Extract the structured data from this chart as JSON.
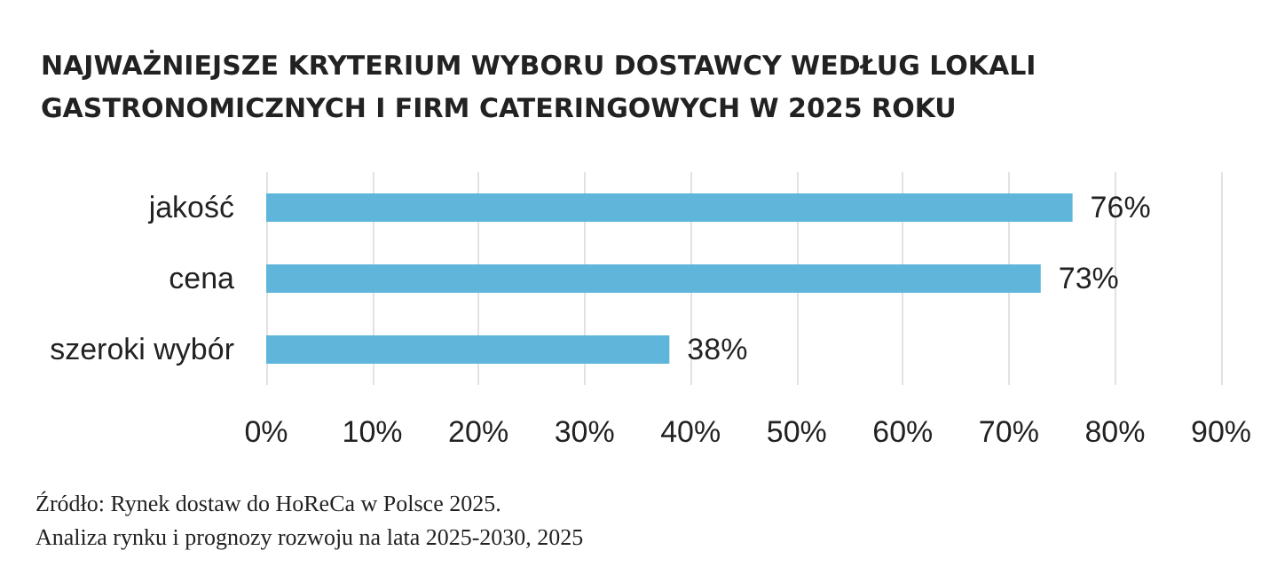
{
  "chart_data": {
    "type": "bar",
    "orientation": "horizontal",
    "title": "NAJWAŻNIEJSZE KRYTERIUM WYBORU DOSTAWCY WEDŁUG LOKALI GASTRONOMICZNYCH I FIRM CATERINGOWYCH W 2025 ROKU",
    "categories": [
      "jakość",
      "cena",
      "szeroki wybór"
    ],
    "values": [
      76,
      73,
      38
    ],
    "value_labels": [
      "76%",
      "73%",
      "38%"
    ],
    "color": "#5fb6da",
    "xlim": [
      0,
      90
    ],
    "xticks": [
      {
        "value": 0,
        "label": "0%"
      },
      {
        "value": 10,
        "label": "10%"
      },
      {
        "value": 20,
        "label": "20%"
      },
      {
        "value": 30,
        "label": "30%"
      },
      {
        "value": 40,
        "label": "40%"
      },
      {
        "value": 50,
        "label": "50%"
      },
      {
        "value": 60,
        "label": "60%"
      },
      {
        "value": 70,
        "label": "70%"
      },
      {
        "value": 80,
        "label": "80%"
      },
      {
        "value": 90,
        "label": "90%"
      }
    ],
    "grid": "x",
    "annotations": [
      "Źródło: Rynek dostaw do HoReCa w Polsce 2025.",
      "Analiza rynku i prognozy rozwoju na lata 2025-2030, 2025"
    ]
  }
}
